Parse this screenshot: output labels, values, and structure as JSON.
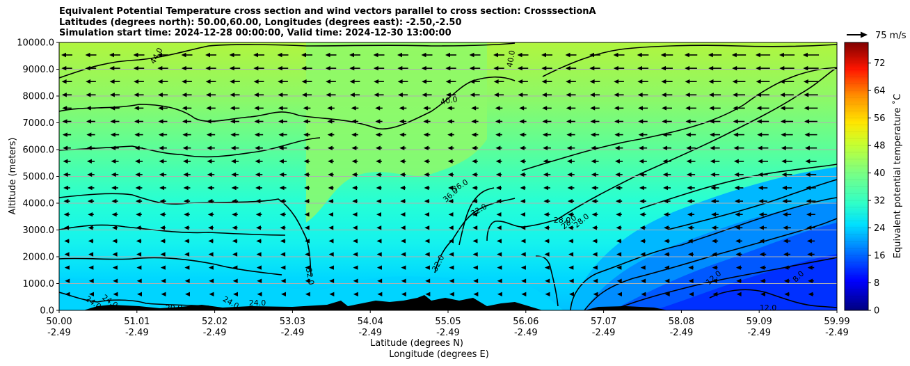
{
  "chart_data": {
    "type": "heatmap",
    "title_lines": [
      "Equivalent Potential Temperature cross section and wind vectors parallel to cross section: CrosssectionA",
      "Latitudes (degrees north): 50.00,60.00, Longitudes (degrees east): -2.50,-2.50",
      "Simulation start time: 2024-12-28 00:00:00, Valid time: 2024-12-30 13:00:00"
    ],
    "ylabel": "Altitude (meters)",
    "xlabel_lines": [
      "Latitude (degrees N)",
      "Longitude (degrees E)"
    ],
    "ylim": [
      0,
      10000
    ],
    "xlim": [
      50.0,
      59.99
    ],
    "yticks": [
      "0.0",
      "1000.0",
      "2000.0",
      "3000.0",
      "4000.0",
      "5000.0",
      "6000.0",
      "7000.0",
      "8000.0",
      "9000.0",
      "10000.0"
    ],
    "xticks": [
      {
        "lat": "50.00",
        "lon": "-2.49"
      },
      {
        "lat": "51.01",
        "lon": "-2.49"
      },
      {
        "lat": "52.02",
        "lon": "-2.49"
      },
      {
        "lat": "53.03",
        "lon": "-2.49"
      },
      {
        "lat": "54.04",
        "lon": "-2.49"
      },
      {
        "lat": "55.05",
        "lon": "-2.49"
      },
      {
        "lat": "56.06",
        "lon": "-2.49"
      },
      {
        "lat": "57.07",
        "lon": "-2.49"
      },
      {
        "lat": "58.08",
        "lon": "-2.49"
      },
      {
        "lat": "59.09",
        "lon": "-2.49"
      },
      {
        "lat": "59.99",
        "lon": "-2.49"
      }
    ],
    "grid": "horizontal",
    "colorbar": {
      "label": "Equivalent potential temperature ˚C",
      "ticks": [
        "0",
        "8",
        "16",
        "24",
        "32",
        "40",
        "48",
        "56",
        "64",
        "72"
      ],
      "range": [
        0,
        78
      ],
      "colormap": "jet"
    },
    "quiver_key": {
      "label": "75 m/s"
    },
    "contour_labels": [
      "44.0",
      "40.0",
      "40.0",
      "36.0",
      "36.0",
      "32.0",
      "32.0",
      "32.0",
      "28.0",
      "28.0",
      "28.0",
      "24.0",
      "24.0",
      "24.0",
      "24.0",
      "20.0",
      "12.0",
      "12.0",
      "8.0"
    ],
    "wind_direction": "parallel to cross section, pointing south (left)",
    "colors": {
      "upper_field": "#a8f54a",
      "mid_field": "#3dffb9",
      "low_field": "#00e5ff",
      "cold_field": "#0030ff",
      "terrain": "#000000",
      "grid": "#b0b0b0"
    }
  }
}
